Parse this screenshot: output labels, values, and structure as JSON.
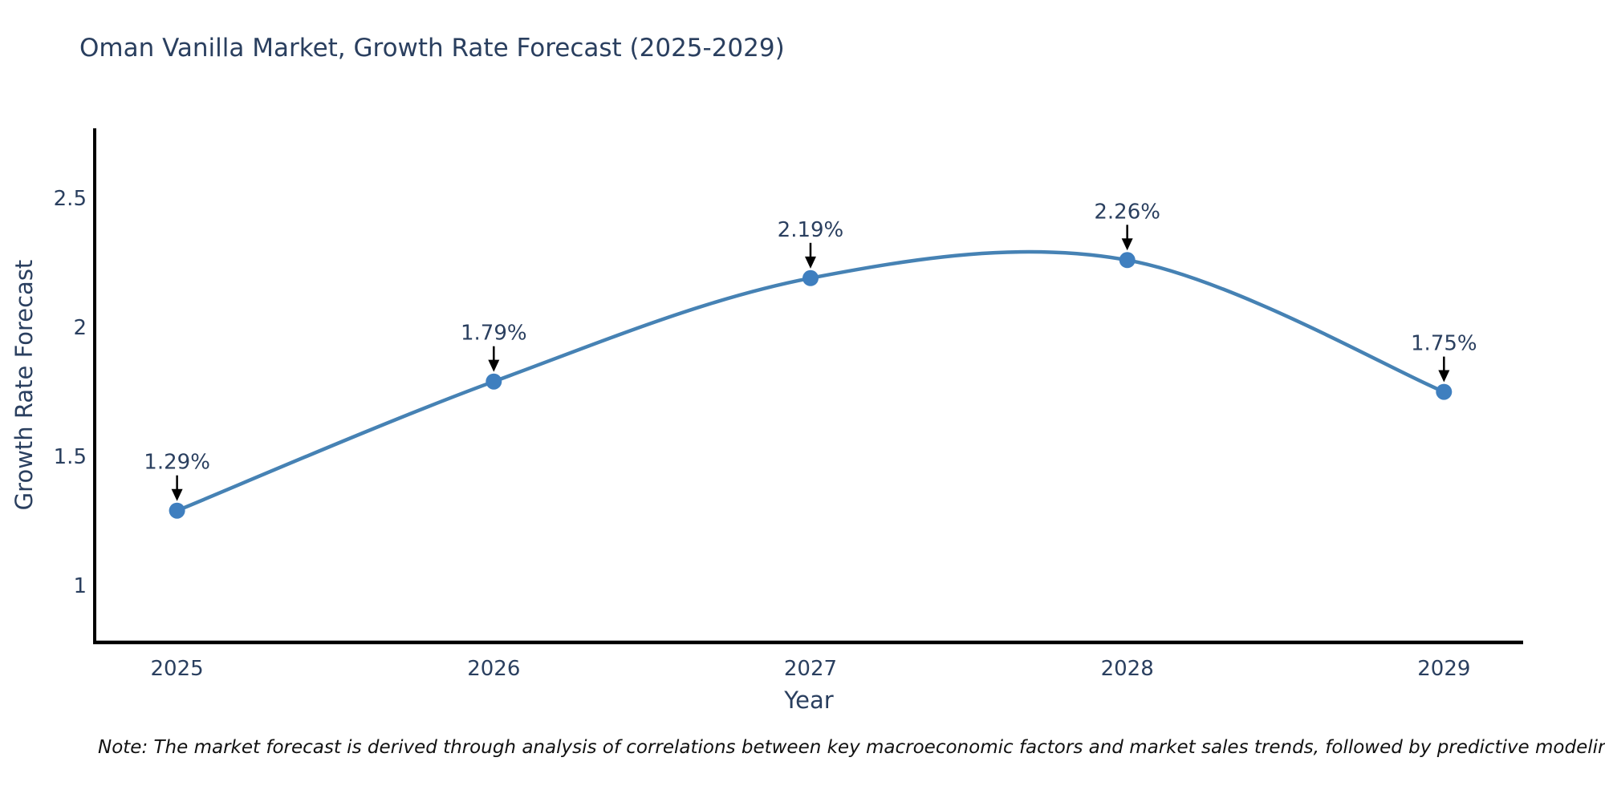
{
  "header": {
    "title": "Oman Vanilla Market, Growth Rate Forecast (2025-2029)"
  },
  "footnote": {
    "text": "Note: The market forecast is derived through analysis of correlations between key macroeconomic factors and market sales trends, followed by predictive modeling to project future sales"
  },
  "chart_data": {
    "type": "line",
    "title": "Oman Vanilla Market, Growth Rate Forecast (2025-2029)",
    "x": [
      2025,
      2026,
      2027,
      2028,
      2029
    ],
    "series": [
      {
        "name": "Growth Rate Forecast",
        "values": [
          1.29,
          1.79,
          2.19,
          2.26,
          1.75
        ]
      }
    ],
    "point_labels": [
      "1.29%",
      "1.79%",
      "2.19%",
      "2.26%",
      "1.75%"
    ],
    "xlabel": "Year",
    "ylabel": "Growth Rate Forecast",
    "xtick_labels": [
      "2025",
      "2026",
      "2027",
      "2028",
      "2029"
    ],
    "ytick_values": [
      1,
      1.5,
      2,
      2.5
    ],
    "ytick_labels": [
      "1",
      "1.5",
      "2",
      "2.5"
    ],
    "xlim": [
      2024.74,
      2029.25
    ],
    "ylim": [
      0.78,
      2.77
    ],
    "grid": false,
    "legend_position": "none",
    "curve": "spline",
    "annotation_style": "down-arrow",
    "colors": {
      "line": "#4682b4",
      "marker": "#3f7fbf",
      "axis": "#000000",
      "text": "#2a3f5f",
      "arrow": "#000000",
      "note": "#111111"
    }
  }
}
